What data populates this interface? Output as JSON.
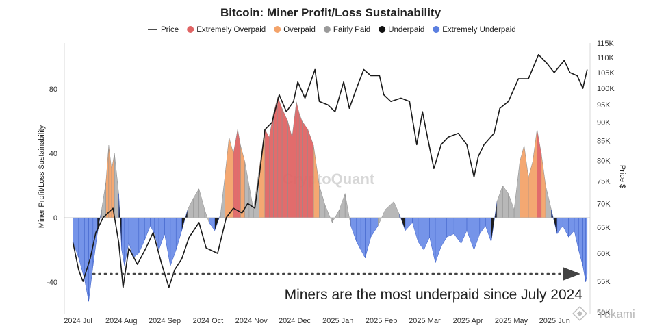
{
  "chart_data": {
    "type": "area",
    "title": "Bitcoin: Miner Profit/Loss Sustainability",
    "ylabel": "Miner Profit/Loss Sustainability",
    "y2label": "Price $",
    "ylim": [
      -52,
      110
    ],
    "y2ticks": [
      "115K",
      "110K",
      "105K",
      "100K",
      "95K",
      "90K",
      "85K",
      "80K",
      "75K",
      "70K",
      "65K",
      "60K",
      "55K",
      "50K"
    ],
    "yticks": [
      "80",
      "40",
      "0",
      "-40"
    ],
    "xticks": [
      "2024 Jul",
      "2024 Aug",
      "2024 Sep",
      "2024 Oct",
      "2024 Nov",
      "2024 Dec",
      "2025 Jan",
      "2025 Feb",
      "2025 Mar",
      "2025 Apr",
      "2025 May",
      "2025 Jun"
    ],
    "legend": [
      {
        "name": "Price",
        "color": "#222222",
        "marker": "line"
      },
      {
        "name": "Extremely Overpaid",
        "color": "#e06464",
        "marker": "dot"
      },
      {
        "name": "Overpaid",
        "color": "#f3a36a",
        "marker": "dot"
      },
      {
        "name": "Fairly Paid",
        "color": "#9a9a9a",
        "marker": "dot"
      },
      {
        "name": "Underpaid",
        "color": "#111111",
        "marker": "dot"
      },
      {
        "name": "Extremely Underpaid",
        "color": "#5b7fe0",
        "marker": "dot"
      }
    ],
    "legend_position": "top",
    "grid": false,
    "annotation": "Miners are the most underpaid since July 2024",
    "price_k": [
      {
        "x": "2024-07-01",
        "y": 62
      },
      {
        "x": "2024-07-05",
        "y": 57
      },
      {
        "x": "2024-07-08",
        "y": 55
      },
      {
        "x": "2024-07-13",
        "y": 59
      },
      {
        "x": "2024-07-17",
        "y": 64
      },
      {
        "x": "2024-07-22",
        "y": 67
      },
      {
        "x": "2024-07-29",
        "y": 69
      },
      {
        "x": "2024-08-02",
        "y": 62
      },
      {
        "x": "2024-08-05",
        "y": 54
      },
      {
        "x": "2024-08-09",
        "y": 61
      },
      {
        "x": "2024-08-15",
        "y": 58
      },
      {
        "x": "2024-08-21",
        "y": 61
      },
      {
        "x": "2024-08-26",
        "y": 64
      },
      {
        "x": "2024-09-01",
        "y": 58
      },
      {
        "x": "2024-09-06",
        "y": 54
      },
      {
        "x": "2024-09-10",
        "y": 57
      },
      {
        "x": "2024-09-15",
        "y": 59
      },
      {
        "x": "2024-09-20",
        "y": 63
      },
      {
        "x": "2024-09-27",
        "y": 66
      },
      {
        "x": "2024-10-02",
        "y": 61
      },
      {
        "x": "2024-10-10",
        "y": 60
      },
      {
        "x": "2024-10-16",
        "y": 67
      },
      {
        "x": "2024-10-21",
        "y": 69
      },
      {
        "x": "2024-10-27",
        "y": 68
      },
      {
        "x": "2024-10-31",
        "y": 70
      },
      {
        "x": "2024-11-05",
        "y": 69
      },
      {
        "x": "2024-11-08",
        "y": 76
      },
      {
        "x": "2024-11-12",
        "y": 88
      },
      {
        "x": "2024-11-17",
        "y": 90
      },
      {
        "x": "2024-11-22",
        "y": 98
      },
      {
        "x": "2024-11-27",
        "y": 93
      },
      {
        "x": "2024-12-02",
        "y": 96
      },
      {
        "x": "2024-12-05",
        "y": 102
      },
      {
        "x": "2024-12-10",
        "y": 97
      },
      {
        "x": "2024-12-17",
        "y": 106
      },
      {
        "x": "2024-12-20",
        "y": 96
      },
      {
        "x": "2024-12-26",
        "y": 95
      },
      {
        "x": "2024-12-31",
        "y": 93
      },
      {
        "x": "2025-01-06",
        "y": 102
      },
      {
        "x": "2025-01-10",
        "y": 94
      },
      {
        "x": "2025-01-15",
        "y": 100
      },
      {
        "x": "2025-01-20",
        "y": 106
      },
      {
        "x": "2025-01-25",
        "y": 104
      },
      {
        "x": "2025-01-31",
        "y": 104
      },
      {
        "x": "2025-02-03",
        "y": 98
      },
      {
        "x": "2025-02-08",
        "y": 96
      },
      {
        "x": "2025-02-15",
        "y": 97
      },
      {
        "x": "2025-02-21",
        "y": 96
      },
      {
        "x": "2025-02-26",
        "y": 84
      },
      {
        "x": "2025-03-02",
        "y": 93
      },
      {
        "x": "2025-03-05",
        "y": 87
      },
      {
        "x": "2025-03-10",
        "y": 78
      },
      {
        "x": "2025-03-15",
        "y": 84
      },
      {
        "x": "2025-03-20",
        "y": 86
      },
      {
        "x": "2025-03-27",
        "y": 87
      },
      {
        "x": "2025-04-02",
        "y": 84
      },
      {
        "x": "2025-04-07",
        "y": 76
      },
      {
        "x": "2025-04-10",
        "y": 81
      },
      {
        "x": "2025-04-14",
        "y": 84
      },
      {
        "x": "2025-04-21",
        "y": 87
      },
      {
        "x": "2025-04-25",
        "y": 94
      },
      {
        "x": "2025-05-01",
        "y": 96
      },
      {
        "x": "2025-05-08",
        "y": 103
      },
      {
        "x": "2025-05-15",
        "y": 103
      },
      {
        "x": "2025-05-22",
        "y": 111
      },
      {
        "x": "2025-05-28",
        "y": 108
      },
      {
        "x": "2025-06-02",
        "y": 105
      },
      {
        "x": "2025-06-09",
        "y": 109
      },
      {
        "x": "2025-06-13",
        "y": 105
      },
      {
        "x": "2025-06-18",
        "y": 104
      },
      {
        "x": "2025-06-22",
        "y": 100
      },
      {
        "x": "2025-06-25",
        "y": 106
      }
    ],
    "sustainability": [
      {
        "x": "2024-07-01",
        "y": -15
      },
      {
        "x": "2024-07-05",
        "y": -25
      },
      {
        "x": "2024-07-09",
        "y": -38
      },
      {
        "x": "2024-07-12",
        "y": -52
      },
      {
        "x": "2024-07-15",
        "y": -30
      },
      {
        "x": "2024-07-18",
        "y": -10
      },
      {
        "x": "2024-07-21",
        "y": 5
      },
      {
        "x": "2024-07-24",
        "y": 22
      },
      {
        "x": "2024-07-26",
        "y": 45
      },
      {
        "x": "2024-07-28",
        "y": 30
      },
      {
        "x": "2024-07-30",
        "y": 40
      },
      {
        "x": "2024-08-02",
        "y": 15
      },
      {
        "x": "2024-08-04",
        "y": -20
      },
      {
        "x": "2024-08-06",
        "y": -30
      },
      {
        "x": "2024-08-09",
        "y": -15
      },
      {
        "x": "2024-08-12",
        "y": -25
      },
      {
        "x": "2024-08-16",
        "y": -22
      },
      {
        "x": "2024-08-20",
        "y": -14
      },
      {
        "x": "2024-08-24",
        "y": -5
      },
      {
        "x": "2024-08-27",
        "y": -10
      },
      {
        "x": "2024-08-30",
        "y": -20
      },
      {
        "x": "2024-09-03",
        "y": -10
      },
      {
        "x": "2024-09-07",
        "y": -30
      },
      {
        "x": "2024-09-11",
        "y": -20
      },
      {
        "x": "2024-09-15",
        "y": -8
      },
      {
        "x": "2024-09-19",
        "y": 5
      },
      {
        "x": "2024-09-23",
        "y": 12
      },
      {
        "x": "2024-09-27",
        "y": 18
      },
      {
        "x": "2024-10-01",
        "y": 5
      },
      {
        "x": "2024-10-04",
        "y": -3
      },
      {
        "x": "2024-10-08",
        "y": -8
      },
      {
        "x": "2024-10-12",
        "y": 2
      },
      {
        "x": "2024-10-15",
        "y": 25
      },
      {
        "x": "2024-10-18",
        "y": 50
      },
      {
        "x": "2024-10-21",
        "y": 40
      },
      {
        "x": "2024-10-24",
        "y": 55
      },
      {
        "x": "2024-10-26",
        "y": 45
      },
      {
        "x": "2024-10-29",
        "y": 35
      },
      {
        "x": "2024-11-01",
        "y": 20
      },
      {
        "x": "2024-11-04",
        "y": 5
      },
      {
        "x": "2024-11-08",
        "y": 30
      },
      {
        "x": "2024-11-12",
        "y": 55
      },
      {
        "x": "2024-11-15",
        "y": 50
      },
      {
        "x": "2024-11-18",
        "y": 65
      },
      {
        "x": "2024-11-21",
        "y": 75
      },
      {
        "x": "2024-11-24",
        "y": 68
      },
      {
        "x": "2024-11-28",
        "y": 60
      },
      {
        "x": "2024-12-01",
        "y": 50
      },
      {
        "x": "2024-12-04",
        "y": 72
      },
      {
        "x": "2024-12-06",
        "y": 65
      },
      {
        "x": "2024-12-08",
        "y": 60
      },
      {
        "x": "2024-12-12",
        "y": 55
      },
      {
        "x": "2024-12-16",
        "y": 45
      },
      {
        "x": "2024-12-20",
        "y": 20
      },
      {
        "x": "2024-12-24",
        "y": 8
      },
      {
        "x": "2024-12-29",
        "y": -3
      },
      {
        "x": "2025-01-03",
        "y": 5
      },
      {
        "x": "2025-01-07",
        "y": 15
      },
      {
        "x": "2025-01-11",
        "y": -5
      },
      {
        "x": "2025-01-15",
        "y": -15
      },
      {
        "x": "2025-01-18",
        "y": -20
      },
      {
        "x": "2025-01-21",
        "y": -25
      },
      {
        "x": "2025-01-25",
        "y": -12
      },
      {
        "x": "2025-01-30",
        "y": -5
      },
      {
        "x": "2025-02-04",
        "y": 5
      },
      {
        "x": "2025-02-10",
        "y": 10
      },
      {
        "x": "2025-02-14",
        "y": 2
      },
      {
        "x": "2025-02-18",
        "y": -8
      },
      {
        "x": "2025-02-23",
        "y": -3
      },
      {
        "x": "2025-02-27",
        "y": -15
      },
      {
        "x": "2025-03-03",
        "y": -20
      },
      {
        "x": "2025-03-07",
        "y": -12
      },
      {
        "x": "2025-03-11",
        "y": -28
      },
      {
        "x": "2025-03-15",
        "y": -18
      },
      {
        "x": "2025-03-19",
        "y": -12
      },
      {
        "x": "2025-03-24",
        "y": -10
      },
      {
        "x": "2025-03-29",
        "y": -16
      },
      {
        "x": "2025-04-02",
        "y": -8
      },
      {
        "x": "2025-04-07",
        "y": -20
      },
      {
        "x": "2025-04-11",
        "y": -10
      },
      {
        "x": "2025-04-15",
        "y": -5
      },
      {
        "x": "2025-04-19",
        "y": -15
      },
      {
        "x": "2025-04-23",
        "y": 10
      },
      {
        "x": "2025-04-27",
        "y": 20
      },
      {
        "x": "2025-05-01",
        "y": 15
      },
      {
        "x": "2025-05-05",
        "y": 5
      },
      {
        "x": "2025-05-09",
        "y": 35
      },
      {
        "x": "2025-05-12",
        "y": 45
      },
      {
        "x": "2025-05-15",
        "y": 25
      },
      {
        "x": "2025-05-18",
        "y": 35
      },
      {
        "x": "2025-05-21",
        "y": 55
      },
      {
        "x": "2025-05-24",
        "y": 40
      },
      {
        "x": "2025-05-27",
        "y": 20
      },
      {
        "x": "2025-05-31",
        "y": 5
      },
      {
        "x": "2025-06-04",
        "y": -10
      },
      {
        "x": "2025-06-08",
        "y": -5
      },
      {
        "x": "2025-06-12",
        "y": -12
      },
      {
        "x": "2025-06-16",
        "y": -8
      },
      {
        "x": "2025-06-19",
        "y": -20
      },
      {
        "x": "2025-06-22",
        "y": -30
      },
      {
        "x": "2025-06-24",
        "y": -40
      },
      {
        "x": "2025-06-25",
        "y": -35
      }
    ]
  },
  "watermark": "CryptoQuant",
  "brand": "Yukami"
}
